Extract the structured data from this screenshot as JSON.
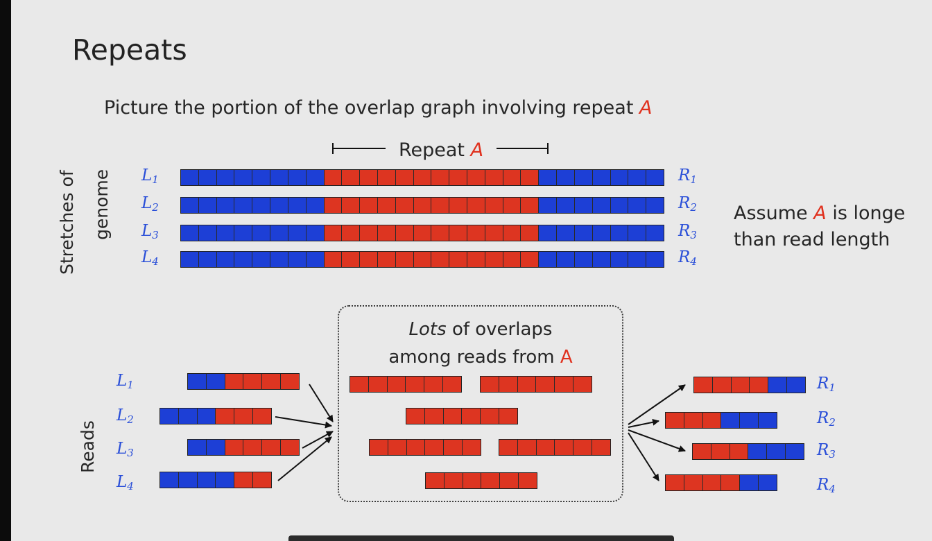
{
  "title": "Repeats",
  "subtitle": {
    "text": "Picture the portion of the overlap graph involving repeat",
    "repeat": "A"
  },
  "repeat_header": {
    "text": "Repeat",
    "repeat": "A"
  },
  "genome_label": {
    "line1": "Stretches of",
    "line2": "genome"
  },
  "reads_label": "Reads",
  "genome_rows": [
    {
      "left": {
        "base": "L",
        "sub": "1"
      },
      "right": {
        "base": "R",
        "sub": "1"
      }
    },
    {
      "left": {
        "base": "L",
        "sub": "2"
      },
      "right": {
        "base": "R",
        "sub": "2"
      }
    },
    {
      "left": {
        "base": "L",
        "sub": "3"
      },
      "right": {
        "base": "R",
        "sub": "3"
      }
    },
    {
      "left": {
        "base": "L",
        "sub": "4"
      },
      "right": {
        "base": "R",
        "sub": "4"
      }
    }
  ],
  "genome_pattern": "bbbbbbbbrrrrrrrrrrrrbbbbbbb",
  "assume": {
    "pre": "Assume",
    "repeat": "A",
    "post": "is longe",
    "line2": "than read length"
  },
  "overlap_caption": {
    "italic": "Lots",
    "rest1": "of overlaps",
    "rest2": "among reads from",
    "repeat": "A"
  },
  "left_reads": [
    {
      "label": {
        "base": "L",
        "sub": "1"
      },
      "pattern": "bbrrrr"
    },
    {
      "label": {
        "base": "L",
        "sub": "2"
      },
      "pattern": "bbbrrr"
    },
    {
      "label": {
        "base": "L",
        "sub": "3"
      },
      "pattern": "bbrrrr"
    },
    {
      "label": {
        "base": "L",
        "sub": "4"
      },
      "pattern": "bbbbrr"
    }
  ],
  "middle_reads": [
    "rrrrrr",
    "rrrrrr",
    "rrrrrr",
    "rrrrrr",
    "rrrrrr",
    "rrrrrr"
  ],
  "right_reads": [
    {
      "label": {
        "base": "R",
        "sub": "1"
      },
      "pattern": "rrrrbb"
    },
    {
      "label": {
        "base": "R",
        "sub": "2"
      },
      "pattern": "rrrbbb"
    },
    {
      "label": {
        "base": "R",
        "sub": "3"
      },
      "pattern": "rrrbbb"
    },
    {
      "label": {
        "base": "R",
        "sub": "4"
      },
      "pattern": "rrrrbb"
    }
  ],
  "colors": {
    "blue": "#1d3fd6",
    "red": "#dd3521",
    "label_blue": "#2a4fd8",
    "accent_red": "#e0311e"
  }
}
